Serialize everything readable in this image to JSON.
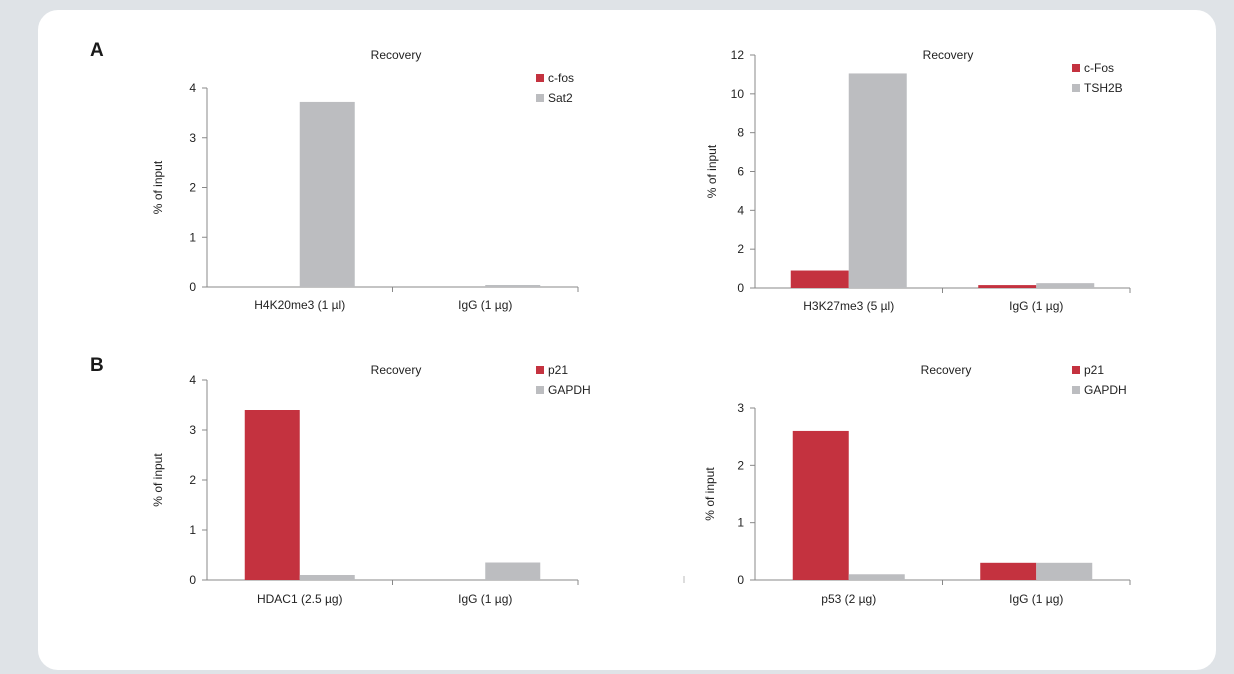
{
  "panels": [
    {
      "label": "A"
    },
    {
      "label": "B"
    }
  ],
  "colors": {
    "red": "#c4323f",
    "gray": "#bcbdc0",
    "axis": "#888888"
  },
  "chart_data": [
    {
      "type": "bar",
      "title": "Recovery",
      "ylabel": "% of input",
      "categories": [
        "H4K20me3 (1 µl)",
        "IgG (1 µg)"
      ],
      "series": [
        {
          "name": "c-fos",
          "values": [
            0,
            0
          ],
          "color": "#c4323f"
        },
        {
          "name": "Sat2",
          "values": [
            3.72,
            0.04
          ],
          "color": "#bcbdc0"
        }
      ],
      "ylim": [
        0,
        4
      ],
      "yticks": [
        0,
        1,
        2,
        3,
        4
      ],
      "legend": "top-right"
    },
    {
      "type": "bar",
      "title": "Recovery",
      "ylabel": "% of input",
      "categories": [
        "H3K27me3 (5 µl)",
        "IgG (1 µg)"
      ],
      "series": [
        {
          "name": "c-Fos",
          "values": [
            0.9,
            0.15
          ],
          "color": "#c4323f"
        },
        {
          "name": "TSH2B",
          "values": [
            11.05,
            0.25
          ],
          "color": "#bcbdc0"
        }
      ],
      "ylim": [
        0,
        12
      ],
      "yticks": [
        0,
        2,
        4,
        6,
        8,
        10,
        12
      ],
      "legend": "top-right"
    },
    {
      "type": "bar",
      "title": "Recovery",
      "ylabel": "% of input",
      "categories": [
        "HDAC1 (2.5 µg)",
        "IgG (1 µg)"
      ],
      "series": [
        {
          "name": "p21",
          "values": [
            3.4,
            0
          ],
          "color": "#c4323f"
        },
        {
          "name": "GAPDH",
          "values": [
            0.1,
            0.35
          ],
          "color": "#bcbdc0"
        }
      ],
      "ylim": [
        0,
        4
      ],
      "yticks": [
        0,
        1,
        2,
        3,
        4
      ],
      "legend": "top-right"
    },
    {
      "type": "bar",
      "title": "Recovery",
      "ylabel": "% of input",
      "categories": [
        "p53 (2 µg)",
        "IgG (1 µg)"
      ],
      "series": [
        {
          "name": "p21",
          "values": [
            2.6,
            0.3
          ],
          "color": "#c4323f"
        },
        {
          "name": "GAPDH",
          "values": [
            0.1,
            0.3
          ],
          "color": "#bcbdc0"
        }
      ],
      "ylim": [
        0,
        3
      ],
      "yticks": [
        0,
        1,
        2,
        3
      ],
      "legend": "top-right"
    }
  ]
}
